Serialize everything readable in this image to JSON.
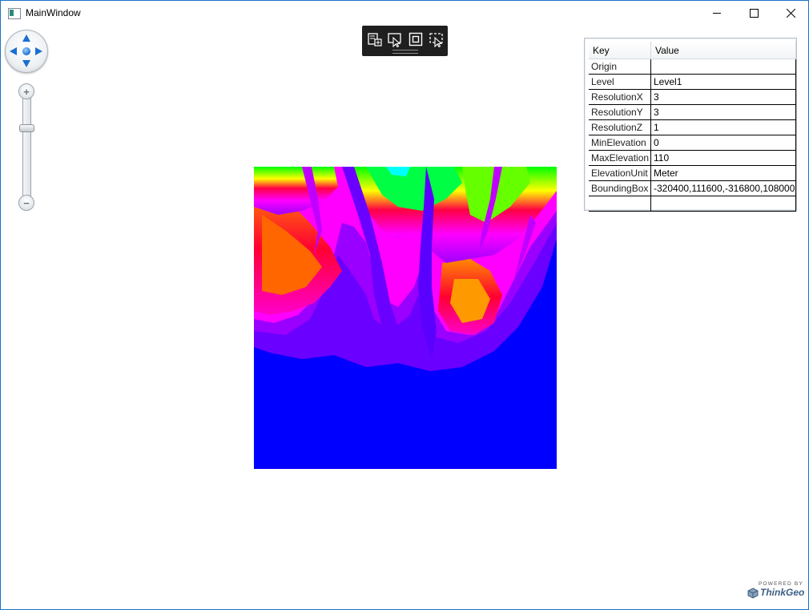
{
  "window": {
    "title": "MainWindow",
    "controls": {
      "minimize": "minimize",
      "maximize": "maximize",
      "close": "close"
    }
  },
  "map": {
    "pan_icons": [
      "pan-up-icon",
      "pan-down-icon",
      "pan-left-icon",
      "pan-right-icon",
      "pan-center-icon"
    ],
    "zoom": {
      "in_label": "+",
      "out_label": "−",
      "level_fraction": 0.28
    },
    "toolbar": {
      "tools": [
        {
          "icon": "edit-layer-icon"
        },
        {
          "icon": "select-pointer-icon"
        },
        {
          "icon": "zoom-extent-icon"
        },
        {
          "icon": "track-select-icon"
        }
      ]
    },
    "raster": {
      "colors": {
        "low": "#0000ff",
        "mid_low": "#7b00ff",
        "mid": "#ff00ff",
        "mid_high": "#ff0044",
        "high": "#00ff00",
        "peak": "#00ffff"
      }
    }
  },
  "properties": {
    "headers": {
      "key": "Key",
      "value": "Value"
    },
    "rows": [
      {
        "key": "Origin",
        "value": ""
      },
      {
        "key": "Level",
        "value": "Level1"
      },
      {
        "key": "ResolutionX",
        "value": "3"
      },
      {
        "key": "ResolutionY",
        "value": "3"
      },
      {
        "key": "ResolutionZ",
        "value": "1"
      },
      {
        "key": "MinElevation",
        "value": "0"
      },
      {
        "key": "MaxElevation",
        "value": "110"
      },
      {
        "key": "ElevationUnit",
        "value": "Meter"
      },
      {
        "key": "BoundingBox",
        "value": "-320400,111600,-316800,108000"
      },
      {
        "key": "",
        "value": ""
      }
    ]
  },
  "logo": {
    "powered_by": "POWERED BY",
    "brand": "ThinkGeo"
  }
}
